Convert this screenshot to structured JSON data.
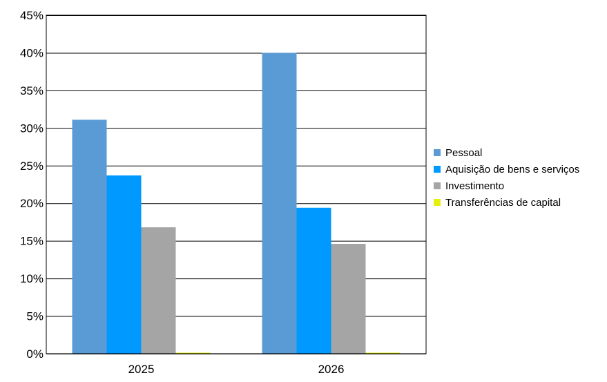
{
  "chart_data": {
    "type": "bar",
    "categories": [
      "2025",
      "2026"
    ],
    "series": [
      {
        "name": "Pessoal",
        "color": "#5B9BD5",
        "values": [
          31.1,
          40.0
        ]
      },
      {
        "name": "Aquisição de bens e serviços",
        "color": "#0099FF",
        "values": [
          23.7,
          19.4
        ]
      },
      {
        "name": "Investimento",
        "color": "#A5A5A5",
        "values": [
          16.8,
          14.6
        ]
      },
      {
        "name": "Transferências de capital",
        "color": "#E5F00F",
        "values": [
          0.1,
          0.1
        ]
      }
    ],
    "ylim": [
      0,
      45
    ],
    "yticks": [
      "0%",
      "5%",
      "10%",
      "15%",
      "20%",
      "25%",
      "30%",
      "35%",
      "40%",
      "45%"
    ],
    "ytick_values": [
      0,
      5,
      10,
      15,
      20,
      25,
      30,
      35,
      40,
      45
    ],
    "grid": true,
    "legend_position": "right"
  }
}
